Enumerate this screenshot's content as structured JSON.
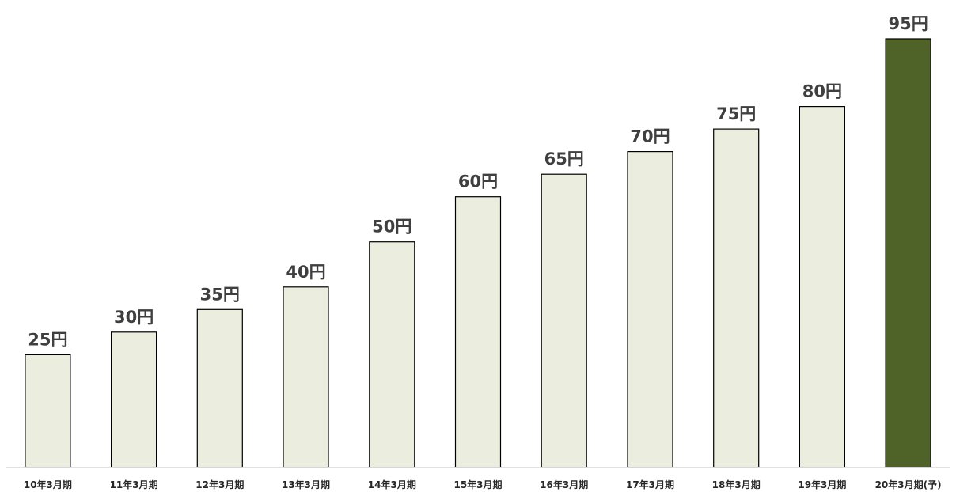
{
  "chart_data": {
    "type": "bar",
    "categories": [
      "10年3月期",
      "11年3月期",
      "12年3月期",
      "13年3月期",
      "14年3月期",
      "15年3月期",
      "16年3月期",
      "17年3月期",
      "18年3月期",
      "19年3月期",
      "20年3月期(予)"
    ],
    "values": [
      25,
      30,
      35,
      40,
      50,
      60,
      65,
      70,
      75,
      80,
      95
    ],
    "value_labels": [
      "25円",
      "30円",
      "35円",
      "40円",
      "50円",
      "60円",
      "65円",
      "70円",
      "75円",
      "80円",
      "95円"
    ],
    "title": "",
    "xlabel": "",
    "ylabel": "",
    "ylim": [
      0,
      95
    ],
    "grid": false,
    "legend": "none",
    "highlight_index": 10,
    "colors": {
      "bar_fill": "#ebeedf",
      "bar_highlight": "#4f6228",
      "bar_stroke": "#000000",
      "axis_line": "#d9d9d9",
      "value_text": "#3f3f3f",
      "category_text": "#262626"
    }
  }
}
